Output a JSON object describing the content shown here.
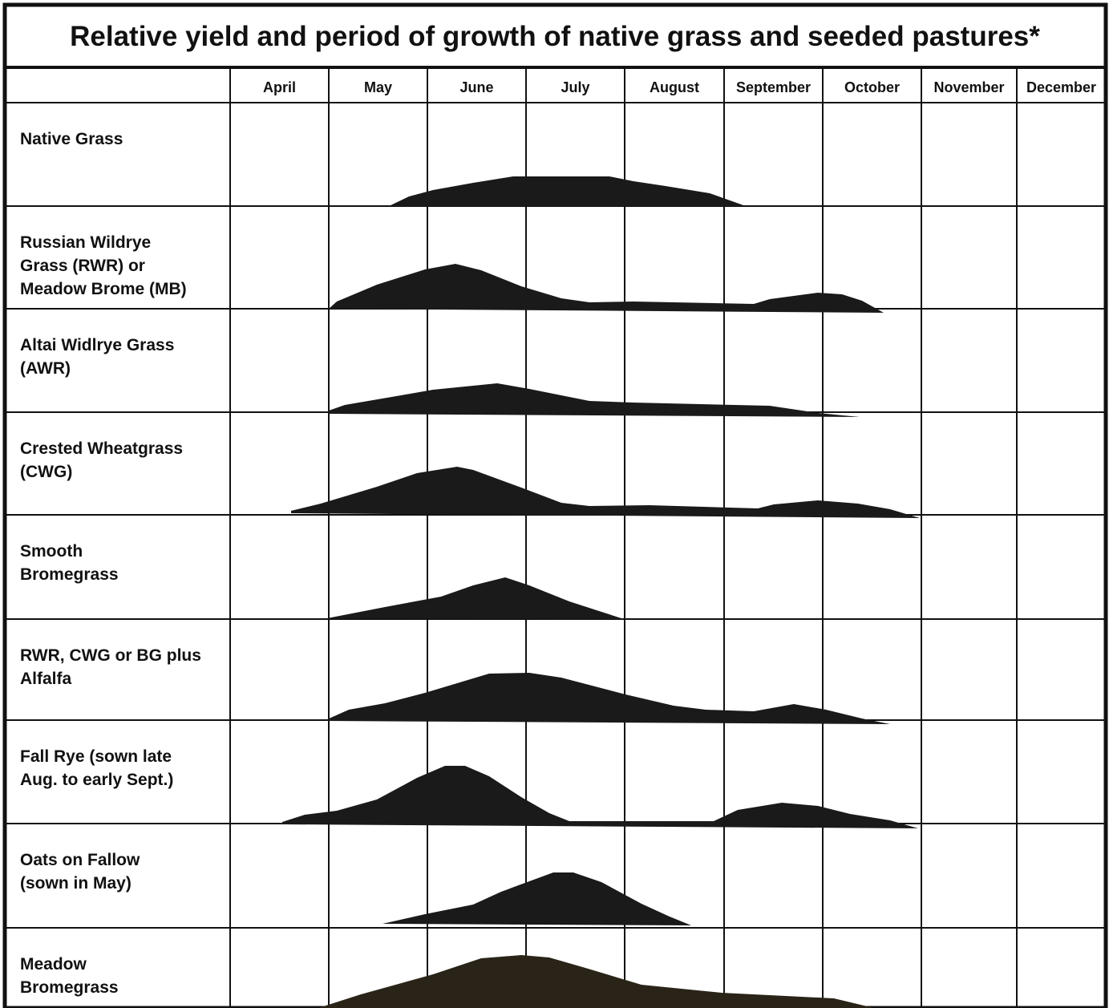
{
  "title": "Relative yield and period of growth of native grass and seeded pastures*",
  "months": [
    "April",
    "May",
    "June",
    "July",
    "August",
    "September",
    "October",
    "November",
    "December"
  ],
  "rows": [
    {
      "lines": [
        "Native Grass"
      ]
    },
    {
      "lines": [
        "Russian Wildrye",
        "Grass (RWR) or",
        "Meadow Brome (MB)"
      ]
    },
    {
      "lines": [
        "Altai Widlrye Grass",
        "(AWR)"
      ]
    },
    {
      "lines": [
        "Crested  Wheatgrass",
        "(CWG)"
      ]
    },
    {
      "lines": [
        "Smooth",
        "Bromegrass"
      ]
    },
    {
      "lines": [
        "RWR, CWG or BG plus",
        "Alfalfa"
      ]
    },
    {
      "lines": [
        "Fall Rye (sown late",
        "Aug. to early Sept.)"
      ]
    },
    {
      "lines": [
        "Oats on Fallow",
        "(sown in May)"
      ]
    },
    {
      "lines": [
        "Meadow",
        "Bromegrass"
      ]
    }
  ]
}
